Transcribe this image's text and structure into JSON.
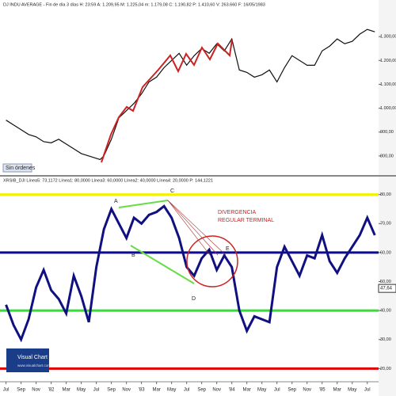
{
  "chart_data": [
    {
      "type": "line",
      "title": "DJ INDU AVERAGE - Fin de día 3 días H: 23:59 A: 1.209,95 M: 1.225,04 m: 1.179,08 C: 1.190,82 P: 1.410,60 V: 263.660 F: 16/05/1983",
      "button": "Sin órdenes",
      "xlim": [
        -0.8,
        49.5
      ],
      "ylim": [
        740,
        1420
      ],
      "yticks": [
        {
          "value": 800,
          "label": "800,00"
        },
        {
          "value": 900,
          "label": "900,00"
        },
        {
          "value": 1000,
          "label": "1.000,00"
        },
        {
          "value": 1100,
          "label": "1.100,00"
        },
        {
          "value": 1200,
          "label": "1.200,00"
        },
        {
          "value": 1300,
          "label": "1.300,00"
        }
      ],
      "series": [
        {
          "name": "DJ INDU AVERAGE",
          "color": "#111111",
          "x": [
            0,
            1,
            2,
            3,
            4,
            5,
            6,
            7,
            8,
            9,
            10,
            11,
            12,
            12.5,
            13,
            14,
            15,
            16,
            17,
            18,
            19,
            20,
            21,
            22,
            23,
            24,
            25,
            26,
            27,
            28,
            29,
            30,
            31,
            32,
            33,
            34,
            35,
            36,
            37,
            38,
            39,
            40,
            41,
            42,
            43,
            44,
            45,
            46,
            47,
            48,
            49
          ],
          "values": [
            950,
            930,
            910,
            890,
            880,
            860,
            855,
            870,
            850,
            830,
            810,
            800,
            790,
            785,
            800,
            870,
            960,
            990,
            1020,
            1060,
            1110,
            1130,
            1170,
            1200,
            1230,
            1180,
            1220,
            1250,
            1230,
            1270,
            1240,
            1290,
            1160,
            1150,
            1130,
            1140,
            1160,
            1110,
            1170,
            1220,
            1200,
            1180,
            1180,
            1240,
            1260,
            1290,
            1270,
            1280,
            1310,
            1330,
            1320
          ]
        }
      ]
    },
    {
      "type": "line",
      "title": "XRSIB_DJI Línea5: 73,1172 Línea1: 80,0000 Línea3: 60,0000 Línea2: 40,0000 Línea4: 20,0000 P: 144,1221",
      "annotations": [
        "A",
        "B",
        "C",
        "D",
        "E"
      ],
      "note": [
        "DIVERGENCIA",
        "REGULAR TERMINAL"
      ],
      "logo": [
        "Visual Chart",
        "www.visualchart.com"
      ],
      "xlim": [
        -0.8,
        49.5
      ],
      "ylim": [
        16,
        84
      ],
      "yticks": [
        {
          "value": 20,
          "label": "20,00"
        },
        {
          "value": 30,
          "label": "30,00"
        },
        {
          "value": 40,
          "label": "40,00"
        },
        {
          "value": 50,
          "label": "50,00"
        },
        {
          "value": 60,
          "label": "60,00"
        },
        {
          "value": 70,
          "label": "70,00"
        },
        {
          "value": 80,
          "label": "80,00"
        }
      ],
      "xticks": [
        {
          "value": 0,
          "label": "Jul"
        },
        {
          "value": 2,
          "label": "Sep"
        },
        {
          "value": 4,
          "label": "Nov"
        },
        {
          "value": 6,
          "label": "'82"
        },
        {
          "value": 8,
          "label": "Mar"
        },
        {
          "value": 10,
          "label": "May"
        },
        {
          "value": 12,
          "label": "Jul"
        },
        {
          "value": 14,
          "label": "Sep"
        },
        {
          "value": 16,
          "label": "Nov"
        },
        {
          "value": 18,
          "label": "'83"
        },
        {
          "value": 20,
          "label": "Mar"
        },
        {
          "value": 22,
          "label": "May"
        },
        {
          "value": 24,
          "label": "Jul"
        },
        {
          "value": 26,
          "label": "Sep"
        },
        {
          "value": 28,
          "label": "Nov"
        },
        {
          "value": 30,
          "label": "'84"
        },
        {
          "value": 32,
          "label": "Mar"
        },
        {
          "value": 34,
          "label": "May"
        },
        {
          "value": 36,
          "label": "Jul"
        },
        {
          "value": 38,
          "label": "Sep"
        },
        {
          "value": 40,
          "label": "Nov"
        },
        {
          "value": 42,
          "label": "'85"
        },
        {
          "value": 44,
          "label": "Mar"
        },
        {
          "value": 46,
          "label": "May"
        },
        {
          "value": 48,
          "label": "Jul"
        }
      ],
      "reference_lines": [
        {
          "value": 80,
          "color": "#f2f200"
        },
        {
          "value": 60,
          "color": "#0a0a9a"
        },
        {
          "value": 40,
          "color": "#33dd33"
        },
        {
          "value": 20,
          "color": "#e00000"
        }
      ],
      "last_value": {
        "value": 47.64,
        "label": "47,64"
      },
      "series": [
        {
          "name": "XRSIB_DJI",
          "color": "#101080",
          "x": [
            0,
            1,
            2,
            3,
            4,
            5,
            6,
            7,
            8,
            9,
            10,
            11,
            12,
            13,
            14,
            15,
            16,
            17,
            18,
            19,
            20,
            21,
            22,
            23,
            24,
            25,
            26,
            27,
            28,
            29,
            30,
            31,
            32,
            33,
            34,
            35,
            36,
            37,
            38,
            39,
            40,
            41,
            42,
            43,
            44,
            45,
            46,
            47,
            48,
            49
          ],
          "values": [
            42,
            35,
            30,
            37,
            48,
            54,
            47,
            44,
            39,
            52,
            45,
            36,
            55,
            68,
            75,
            70,
            65,
            72,
            70,
            73,
            74,
            76,
            72,
            65,
            55,
            52,
            58,
            61,
            54,
            59,
            55,
            40,
            33,
            38,
            37,
            36,
            55,
            62,
            57,
            52,
            59,
            58,
            66,
            57,
            53,
            58,
            62,
            66,
            72,
            66
          ]
        }
      ]
    }
  ]
}
